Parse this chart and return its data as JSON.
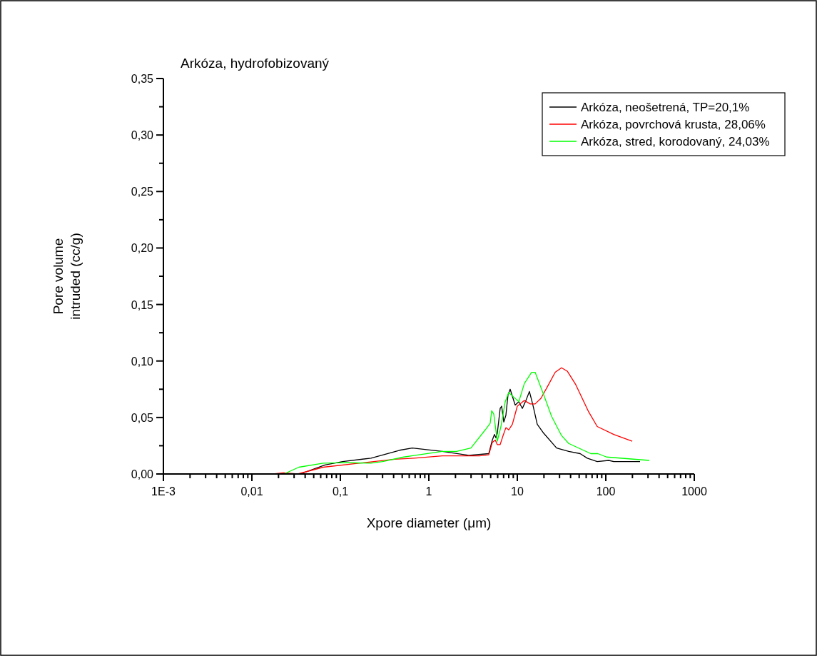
{
  "chart_data": {
    "type": "line",
    "title": "Arkóza, hydrofobizovaný",
    "xlabel": "Xpore diameter (μm)",
    "ylabel": "Pore volume\nintruded (cc/g)",
    "log": "x",
    "legend": "top right",
    "line_style": "solid",
    "marker": "none",
    "grid": false,
    "xlim": [
      0.001,
      1000
    ],
    "ylim": [
      0,
      0.35
    ],
    "xticks": [
      {
        "value": 0.001,
        "label": "1E-3"
      },
      {
        "value": 0.002,
        "label": null
      },
      {
        "value": 0.003,
        "label": null
      },
      {
        "value": 0.004,
        "label": null
      },
      {
        "value": 0.005,
        "label": null
      },
      {
        "value": 0.006,
        "label": null
      },
      {
        "value": 0.007,
        "label": null
      },
      {
        "value": 0.008,
        "label": null
      },
      {
        "value": 0.009,
        "label": null
      },
      {
        "value": 0.01,
        "label": "0,01"
      },
      {
        "value": 0.02,
        "label": null
      },
      {
        "value": 0.03,
        "label": null
      },
      {
        "value": 0.04,
        "label": null
      },
      {
        "value": 0.05,
        "label": null
      },
      {
        "value": 0.06,
        "label": null
      },
      {
        "value": 0.07,
        "label": null
      },
      {
        "value": 0.08,
        "label": null
      },
      {
        "value": 0.09,
        "label": null
      },
      {
        "value": 0.1,
        "label": "0,1"
      },
      {
        "value": 0.2,
        "label": null
      },
      {
        "value": 0.3,
        "label": null
      },
      {
        "value": 0.4,
        "label": null
      },
      {
        "value": 0.5,
        "label": null
      },
      {
        "value": 0.6,
        "label": null
      },
      {
        "value": 0.7,
        "label": null
      },
      {
        "value": 0.8,
        "label": null
      },
      {
        "value": 0.9,
        "label": null
      },
      {
        "value": 1,
        "label": "1"
      },
      {
        "value": 2,
        "label": null
      },
      {
        "value": 3,
        "label": null
      },
      {
        "value": 4,
        "label": null
      },
      {
        "value": 5,
        "label": null
      },
      {
        "value": 6,
        "label": null
      },
      {
        "value": 7,
        "label": null
      },
      {
        "value": 8,
        "label": null
      },
      {
        "value": 9,
        "label": null
      },
      {
        "value": 10,
        "label": "10"
      },
      {
        "value": 20,
        "label": null
      },
      {
        "value": 30,
        "label": null
      },
      {
        "value": 40,
        "label": null
      },
      {
        "value": 50,
        "label": null
      },
      {
        "value": 60,
        "label": null
      },
      {
        "value": 70,
        "label": null
      },
      {
        "value": 80,
        "label": null
      },
      {
        "value": 90,
        "label": null
      },
      {
        "value": 100,
        "label": "100"
      },
      {
        "value": 200,
        "label": null
      },
      {
        "value": 300,
        "label": null
      },
      {
        "value": 400,
        "label": null
      },
      {
        "value": 500,
        "label": null
      },
      {
        "value": 600,
        "label": null
      },
      {
        "value": 700,
        "label": null
      },
      {
        "value": 800,
        "label": null
      },
      {
        "value": 900,
        "label": null
      },
      {
        "value": 1000,
        "label": "1000"
      }
    ],
    "yticks": [
      {
        "value": 0,
        "label": "0,00"
      },
      {
        "value": 0.025,
        "label": null
      },
      {
        "value": 0.05,
        "label": "0,05"
      },
      {
        "value": 0.075,
        "label": null
      },
      {
        "value": 0.1,
        "label": "0,10"
      },
      {
        "value": 0.125,
        "label": null
      },
      {
        "value": 0.15,
        "label": "0,15"
      },
      {
        "value": 0.175,
        "label": null
      },
      {
        "value": 0.2,
        "label": "0,20"
      },
      {
        "value": 0.225,
        "label": null
      },
      {
        "value": 0.25,
        "label": "0,25"
      },
      {
        "value": 0.275,
        "label": null
      },
      {
        "value": 0.3,
        "label": "0,30"
      },
      {
        "value": 0.325,
        "label": null
      },
      {
        "value": 0.35,
        "label": "0,35"
      }
    ],
    "series": [
      {
        "name": "Arkóza, neošetrená, TP=20,1%",
        "color": "#000000",
        "x": [
          0.022,
          0.035,
          0.067,
          0.106,
          0.222,
          0.467,
          0.65,
          1.42,
          2.83,
          4.76,
          5.22,
          5.52,
          5.72,
          5.94,
          6.4,
          6.65,
          7.03,
          7.43,
          7.85,
          8.3,
          9.46,
          10.4,
          11.4,
          12.5,
          13.7,
          15.0,
          16.8,
          19.9,
          27.8,
          38.1,
          51.3,
          61.7,
          80,
          108,
          123,
          244
        ],
        "values": [
          0,
          0,
          0.008,
          0.011,
          0.014,
          0.021,
          0.023,
          0.02,
          0.0165,
          0.018,
          0.03,
          0.035,
          0.032,
          0.036,
          0.058,
          0.06,
          0.046,
          0.052,
          0.07,
          0.075,
          0.061,
          0.064,
          0.058,
          0.065,
          0.073,
          0.061,
          0.044,
          0.036,
          0.023,
          0.02,
          0.018,
          0.014,
          0.011,
          0.012,
          0.011,
          0.011
        ]
      },
      {
        "name": "Arkóza, povrchová krusta, 28,06%",
        "color": "#ff0000",
        "x": [
          0.0175,
          0.0226,
          0.033,
          0.064,
          0.41,
          0.68,
          1.42,
          3.74,
          4.76,
          5.22,
          5.63,
          5.94,
          6.4,
          6.9,
          7.43,
          8.0,
          8.79,
          10.0,
          12.0,
          14.0,
          15.9,
          18.5,
          21.8,
          26.8,
          31.6,
          36.7,
          45.8,
          64,
          80,
          123,
          199
        ],
        "values": [
          0,
          0.001,
          0,
          0.006,
          0.013,
          0.014,
          0.016,
          0.016,
          0.017,
          0.028,
          0.03,
          0.026,
          0.026,
          0.034,
          0.041,
          0.039,
          0.044,
          0.06,
          0.065,
          0.062,
          0.062,
          0.067,
          0.077,
          0.09,
          0.094,
          0.091,
          0.079,
          0.055,
          0.042,
          0.035,
          0.029
        ]
      },
      {
        "name": "Arkóza, stred, korodovaný, 24,03%",
        "color": "#00ff00",
        "x": [
          0.0035,
          0.019,
          0.023,
          0.034,
          0.064,
          0.12,
          0.22,
          0.3,
          0.52,
          0.68,
          1.42,
          2.06,
          2.99,
          4.34,
          4.94,
          5.13,
          5.42,
          5.94,
          6.53,
          7.3,
          8.0,
          9.12,
          10.4,
          12.0,
          14.5,
          15.9,
          19.9,
          24.4,
          31.6,
          38.1,
          67.7,
          81.5,
          102,
          310
        ],
        "values": [
          0,
          0,
          0,
          0.006,
          0.0095,
          0.01,
          0.0095,
          0.011,
          0.015,
          0.0164,
          0.02,
          0.02,
          0.023,
          0.039,
          0.045,
          0.056,
          0.053,
          0.029,
          0.042,
          0.064,
          0.072,
          0.068,
          0.064,
          0.08,
          0.09,
          0.09,
          0.07,
          0.051,
          0.034,
          0.027,
          0.018,
          0.018,
          0.015,
          0.012
        ]
      }
    ]
  }
}
